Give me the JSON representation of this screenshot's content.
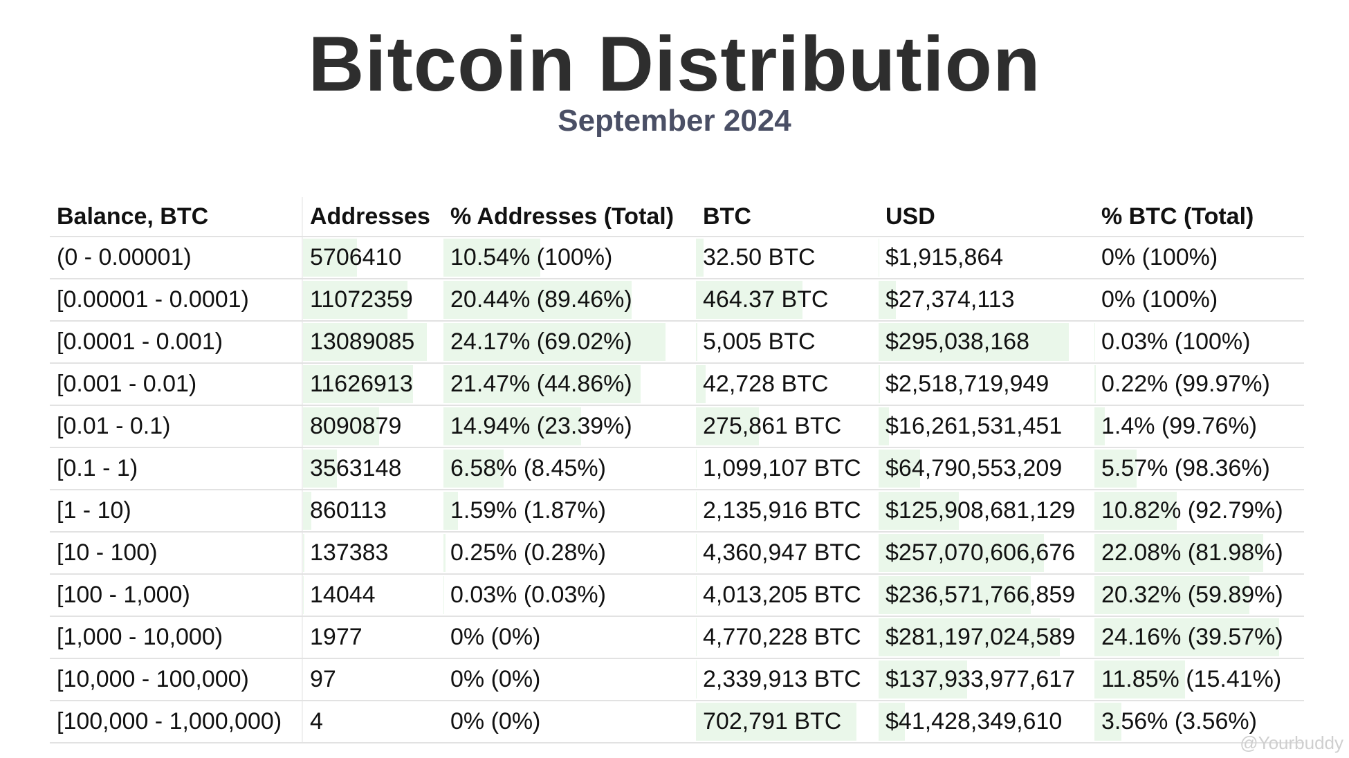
{
  "header": {
    "title": "Bitcoin Distribution",
    "subtitle": "September 2024"
  },
  "table": {
    "columns": [
      "Balance, BTC",
      "Addresses",
      "% Addresses (Total)",
      "BTC",
      "USD",
      "% BTC (Total)"
    ],
    "rows": [
      [
        "(0 - 0.00001)",
        "5706410",
        "10.54% (100%)",
        "32.50 BTC",
        "$1,915,864",
        "0% (100%)"
      ],
      [
        "[0.00001 - 0.0001)",
        "11072359",
        "20.44% (89.46%)",
        "464.37 BTC",
        "$27,374,113",
        "0% (100%)"
      ],
      [
        "[0.0001 - 0.001)",
        "13089085",
        "24.17% (69.02%)",
        "5,005 BTC",
        "$295,038,168",
        "0.03% (100%)"
      ],
      [
        "[0.001 - 0.01)",
        "11626913",
        "21.47% (44.86%)",
        "42,728 BTC",
        "$2,518,719,949",
        "0.22% (99.97%)"
      ],
      [
        "[0.01 - 0.1)",
        "8090879",
        "14.94% (23.39%)",
        "275,861 BTC",
        "$16,261,531,451",
        "1.4% (99.76%)"
      ],
      [
        "[0.1 - 1)",
        "3563148",
        "6.58% (8.45%)",
        "1,099,107 BTC",
        "$64,790,553,209",
        "5.57% (98.36%)"
      ],
      [
        "[1 - 10)",
        "860113",
        "1.59% (1.87%)",
        "2,135,916 BTC",
        "$125,908,681,129",
        "10.82% (92.79%)"
      ],
      [
        "[10 - 100)",
        "137383",
        "0.25% (0.28%)",
        "4,360,947 BTC",
        "$257,070,606,676",
        "22.08% (81.98%)"
      ],
      [
        "[100 - 1,000)",
        "14044",
        "0.03% (0.03%)",
        "4,013,205 BTC",
        "$236,571,766,859",
        "20.32% (59.89%)"
      ],
      [
        "[1,000 - 10,000)",
        "1977",
        "0% (0%)",
        "4,770,228 BTC",
        "$281,197,024,589",
        "24.16% (39.57%)"
      ],
      [
        "[10,000 - 100,000)",
        "97",
        "0% (0%)",
        "2,339,913 BTC",
        "$137,933,977,617",
        "11.85% (15.41%)"
      ],
      [
        "[100,000 - 1,000,000)",
        "4",
        "0% (0%)",
        "702,791 BTC",
        "$41,428,349,610",
        "3.56% (3.56%)"
      ]
    ]
  },
  "watermark": "@Yourbuddy"
}
